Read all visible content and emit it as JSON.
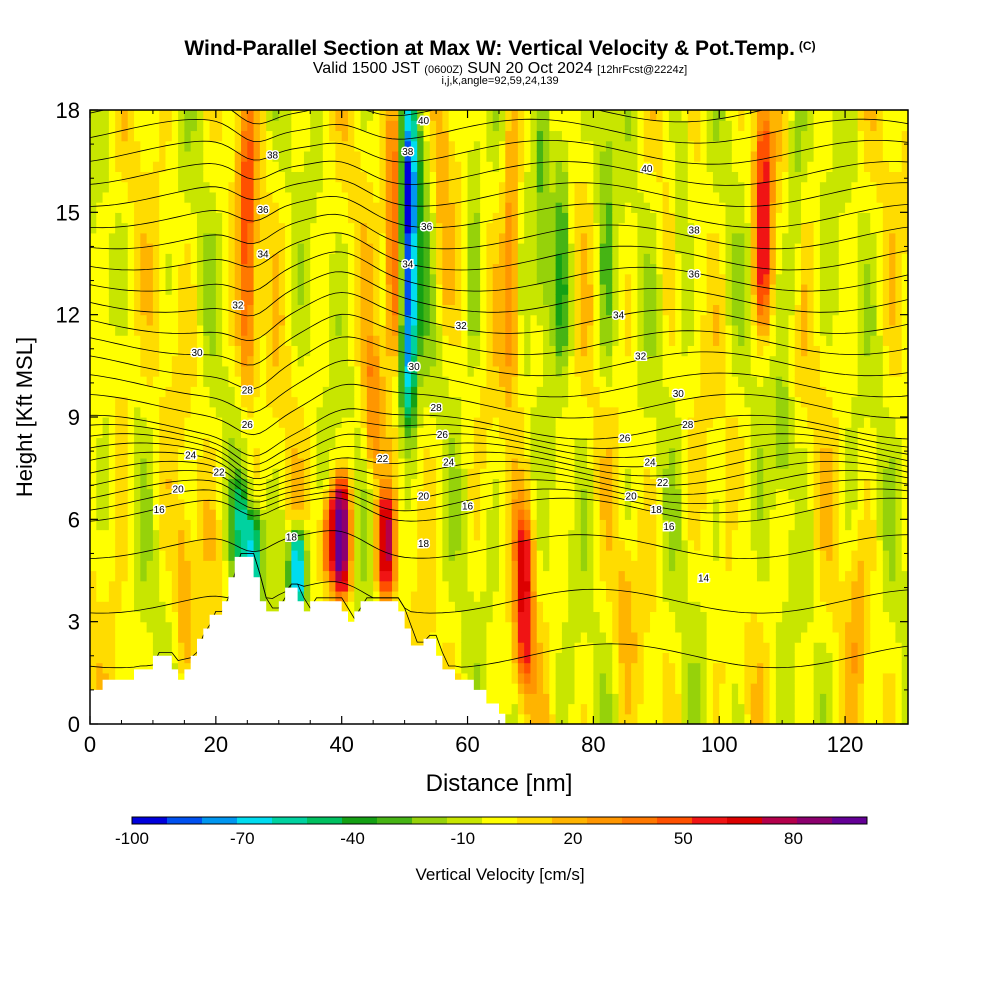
{
  "header": {
    "title": "Wind-Parallel Section at Max W: Vertical Velocity & Pot.Temp.",
    "copyright": "(C)",
    "valid_prefix": "Valid 1500 JST",
    "valid_utc": "(0600Z)",
    "valid_date": "SUN 20 Oct 2024",
    "forecast": "[12hrFcst@2224z]",
    "indices": "i,j,k,angle=92,59,24,139"
  },
  "chart_data": {
    "type": "heatmap",
    "xlabel": "Distance [nm]",
    "ylabel": "Height [Kft MSL]",
    "xlim": [
      0,
      130
    ],
    "ylim": [
      0,
      18
    ],
    "x_ticks": [
      "0",
      "20",
      "40",
      "60",
      "80",
      "100",
      "120"
    ],
    "y_ticks": [
      "0",
      "3",
      "6",
      "9",
      "12",
      "15",
      "18"
    ],
    "colorbar": {
      "label": "Vertical Velocity [cm/s]",
      "tick_labels": [
        "-100",
        "-70",
        "-40",
        "-10",
        "20",
        "50",
        "80"
      ],
      "tick_values": [
        -100,
        -70,
        -40,
        -10,
        20,
        50,
        80
      ],
      "range": [
        -100,
        100
      ],
      "colors": [
        "#0000dc",
        "#0050f0",
        "#0096f0",
        "#00dcf0",
        "#00d2a0",
        "#00c060",
        "#14a014",
        "#46b414",
        "#96d20a",
        "#c8e600",
        "#ffff00",
        "#ffdc00",
        "#ffb400",
        "#ff9600",
        "#ff7800",
        "#ff5000",
        "#f01414",
        "#dc0000",
        "#b4004b",
        "#8c006e",
        "#640096"
      ]
    },
    "terrain_profile": [
      [
        0,
        1
      ],
      [
        2,
        1
      ],
      [
        2,
        1.3
      ],
      [
        7,
        1.3
      ],
      [
        7,
        1.6
      ],
      [
        10,
        1.6
      ],
      [
        10,
        2
      ],
      [
        13,
        2
      ],
      [
        13,
        1.6
      ],
      [
        14,
        1.6
      ],
      [
        14,
        1.3
      ],
      [
        15,
        1.3
      ],
      [
        15,
        1.6
      ],
      [
        16,
        1.6
      ],
      [
        16,
        2
      ],
      [
        17,
        2
      ],
      [
        17,
        2.5
      ],
      [
        18,
        2.5
      ],
      [
        18,
        2.8
      ],
      [
        19,
        2.8
      ],
      [
        19,
        3.2
      ],
      [
        21,
        3.2
      ],
      [
        21,
        3.6
      ],
      [
        22,
        3.6
      ],
      [
        22,
        4.3
      ],
      [
        23,
        4.3
      ],
      [
        23,
        4.9
      ],
      [
        26,
        4.9
      ],
      [
        26,
        4.3
      ],
      [
        27,
        4.3
      ],
      [
        27,
        3.6
      ],
      [
        28,
        3.6
      ],
      [
        28,
        3.3
      ],
      [
        30,
        3.3
      ],
      [
        30,
        3.6
      ],
      [
        31,
        3.6
      ],
      [
        31,
        4
      ],
      [
        33,
        4
      ],
      [
        33,
        3.6
      ],
      [
        34,
        3.6
      ],
      [
        34,
        3.3
      ],
      [
        35,
        3.3
      ],
      [
        35,
        3.6
      ],
      [
        40,
        3.6
      ],
      [
        40,
        3.3
      ],
      [
        41,
        3.3
      ],
      [
        41,
        3
      ],
      [
        42,
        3
      ],
      [
        42,
        3.3
      ],
      [
        43,
        3.3
      ],
      [
        43,
        3.6
      ],
      [
        49,
        3.6
      ],
      [
        49,
        3.3
      ],
      [
        50,
        3.3
      ],
      [
        50,
        2.8
      ],
      [
        51,
        2.8
      ],
      [
        51,
        2.3
      ],
      [
        53,
        2.3
      ],
      [
        53,
        2.5
      ],
      [
        55,
        2.5
      ],
      [
        55,
        2
      ],
      [
        56,
        2
      ],
      [
        56,
        1.6
      ],
      [
        58,
        1.6
      ],
      [
        58,
        1.3
      ],
      [
        61,
        1.3
      ],
      [
        61,
        1
      ],
      [
        63,
        1
      ],
      [
        63,
        0.6
      ],
      [
        65,
        0.6
      ],
      [
        65,
        0.3
      ],
      [
        66,
        0.3
      ],
      [
        66,
        0
      ],
      [
        130,
        0
      ]
    ],
    "w_features": [
      {
        "x": 25,
        "z0": 10,
        "z1": 18,
        "w": 45
      },
      {
        "x": 24,
        "z0": 4.5,
        "z1": 7,
        "w": -40
      },
      {
        "x": 26,
        "z0": 3.8,
        "z1": 6,
        "w": -60
      },
      {
        "x": 33,
        "z0": 3.5,
        "z1": 5.5,
        "w": -90
      },
      {
        "x": 40,
        "z0": 4,
        "z1": 7,
        "w": 90
      },
      {
        "x": 38,
        "z0": 4.5,
        "z1": 6.5,
        "w": 45
      },
      {
        "x": 47,
        "z0": 4,
        "z1": 6.5,
        "w": 70
      },
      {
        "x": 45,
        "z0": 7.5,
        "z1": 11,
        "w": 30
      },
      {
        "x": 50.5,
        "z0": 9,
        "z1": 18,
        "w": -95
      },
      {
        "x": 48.5,
        "z0": 11,
        "z1": 18,
        "w": 55
      },
      {
        "x": 52.5,
        "z0": 11,
        "z1": 18,
        "w": -20
      },
      {
        "x": 56,
        "z0": 12,
        "z1": 18,
        "w": 20
      },
      {
        "x": 61,
        "z0": 11,
        "z1": 18,
        "w": -20
      },
      {
        "x": 69,
        "z0": 1,
        "z1": 6,
        "w": 60
      },
      {
        "x": 67,
        "z0": 10,
        "z1": 18,
        "w": 35
      },
      {
        "x": 72,
        "z0": 12,
        "z1": 18,
        "w": -25
      },
      {
        "x": 75,
        "z0": 11,
        "z1": 18,
        "w": -30
      },
      {
        "x": 82,
        "z0": 10,
        "z1": 18,
        "w": -20
      },
      {
        "x": 85,
        "z0": 2,
        "z1": 5,
        "w": 15
      },
      {
        "x": 94,
        "z0": 11,
        "z1": 18,
        "w": -20
      },
      {
        "x": 103,
        "z0": 3,
        "z1": 7,
        "w": -15
      },
      {
        "x": 107,
        "z0": 12,
        "z1": 18,
        "w": 60
      },
      {
        "x": 110,
        "z0": 7,
        "z1": 10,
        "w": -20
      },
      {
        "x": 112,
        "z0": 12,
        "z1": 18,
        "w": -20
      },
      {
        "x": 122,
        "z0": 1,
        "z1": 5,
        "w": 15
      },
      {
        "x": 15,
        "z0": 2,
        "z1": 6,
        "w": 20
      },
      {
        "x": 5,
        "z0": 6.5,
        "z1": 12,
        "w": 15
      }
    ],
    "theta_contours": {
      "levels": [
        14,
        16,
        18,
        20,
        22,
        24,
        26,
        28,
        30,
        32,
        34,
        36,
        38,
        40
      ],
      "labels": [
        {
          "text": "14",
          "x": 97.5,
          "z": 4.3
        },
        {
          "text": "16",
          "x": 11,
          "z": 6.3
        },
        {
          "text": "16",
          "x": 60,
          "z": 6.4
        },
        {
          "text": "16",
          "x": 92,
          "z": 5.8
        },
        {
          "text": "18",
          "x": 32,
          "z": 5.5
        },
        {
          "text": "18",
          "x": 53,
          "z": 5.3
        },
        {
          "text": "18",
          "x": 90,
          "z": 6.3
        },
        {
          "text": "20",
          "x": 14,
          "z": 6.9
        },
        {
          "text": "20",
          "x": 53,
          "z": 6.7
        },
        {
          "text": "20",
          "x": 86,
          "z": 6.7
        },
        {
          "text": "22",
          "x": 20.5,
          "z": 7.4
        },
        {
          "text": "22",
          "x": 46.5,
          "z": 7.8
        },
        {
          "text": "22",
          "x": 91,
          "z": 7.1
        },
        {
          "text": "24",
          "x": 16,
          "z": 7.9
        },
        {
          "text": "24",
          "x": 57,
          "z": 7.7
        },
        {
          "text": "24",
          "x": 89,
          "z": 7.7
        },
        {
          "text": "26",
          "x": 25,
          "z": 8.8
        },
        {
          "text": "26",
          "x": 56,
          "z": 8.5
        },
        {
          "text": "26",
          "x": 85,
          "z": 8.4
        },
        {
          "text": "28",
          "x": 25,
          "z": 9.8
        },
        {
          "text": "28",
          "x": 55,
          "z": 9.3
        },
        {
          "text": "28",
          "x": 95,
          "z": 8.8
        },
        {
          "text": "30",
          "x": 17,
          "z": 10.9
        },
        {
          "text": "30",
          "x": 51.5,
          "z": 10.5
        },
        {
          "text": "30",
          "x": 93.5,
          "z": 9.7
        },
        {
          "text": "32",
          "x": 23.5,
          "z": 12.3
        },
        {
          "text": "32",
          "x": 59,
          "z": 11.7
        },
        {
          "text": "32",
          "x": 87.5,
          "z": 10.8
        },
        {
          "text": "34",
          "x": 27.5,
          "z": 13.8
        },
        {
          "text": "34",
          "x": 50.5,
          "z": 13.5
        },
        {
          "text": "34",
          "x": 84,
          "z": 12
        },
        {
          "text": "36",
          "x": 27.5,
          "z": 15.1
        },
        {
          "text": "36",
          "x": 53.5,
          "z": 14.6
        },
        {
          "text": "36",
          "x": 96,
          "z": 13.2
        },
        {
          "text": "38",
          "x": 29,
          "z": 16.7
        },
        {
          "text": "38",
          "x": 50.5,
          "z": 16.8
        },
        {
          "text": "38",
          "x": 96,
          "z": 14.5
        },
        {
          "text": "40",
          "x": 53,
          "z": 17.7
        },
        {
          "text": "40",
          "x": 88.5,
          "z": 16.3
        }
      ]
    }
  }
}
